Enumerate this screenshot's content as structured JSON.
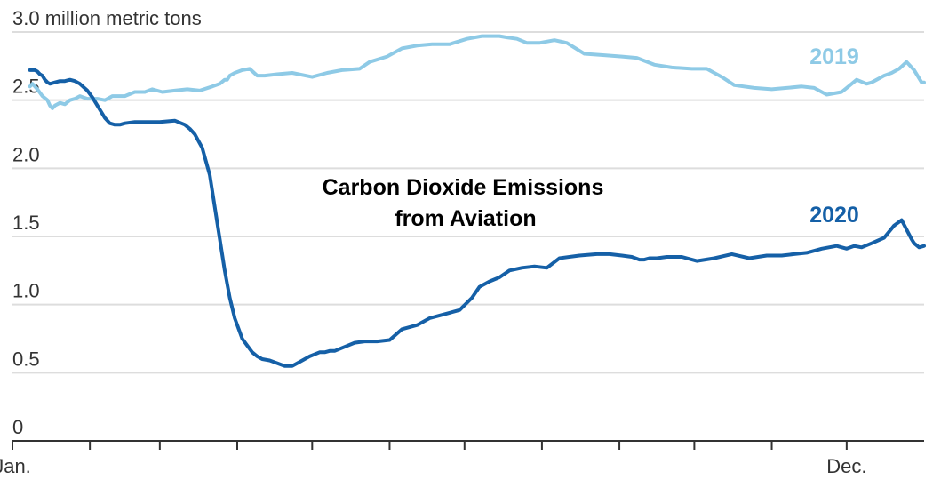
{
  "chart_data": {
    "type": "line",
    "title_lines": [
      "Carbon Dioxide Emissions",
      "from Aviation"
    ],
    "ylabel": "3.0 million metric tons",
    "ylim": [
      0,
      3.0
    ],
    "y_ticks": [
      {
        "value": 3.0,
        "label": "3.0 million metric tons"
      },
      {
        "value": 2.5,
        "label": "2.5"
      },
      {
        "value": 2.0,
        "label": "2.0"
      },
      {
        "value": 1.5,
        "label": "1.5"
      },
      {
        "value": 1.0,
        "label": "1.0"
      },
      {
        "value": 0.5,
        "label": "0.5"
      },
      {
        "value": 0,
        "label": "0"
      }
    ],
    "x_domain": [
      1,
      366
    ],
    "x_ticks": [
      {
        "day": 1,
        "label": "Jan."
      },
      {
        "day": 32,
        "label": ""
      },
      {
        "day": 60,
        "label": ""
      },
      {
        "day": 91,
        "label": ""
      },
      {
        "day": 121,
        "label": ""
      },
      {
        "day": 152,
        "label": ""
      },
      {
        "day": 182,
        "label": ""
      },
      {
        "day": 213,
        "label": ""
      },
      {
        "day": 244,
        "label": ""
      },
      {
        "day": 274,
        "label": ""
      },
      {
        "day": 305,
        "label": ""
      },
      {
        "day": 335,
        "label": "Dec."
      }
    ],
    "grid": true,
    "series": [
      {
        "name": "2019",
        "color": "#8ecae6",
        "x": [
          8,
          9,
          10,
          11,
          13,
          15,
          16,
          17,
          18,
          20,
          22,
          24,
          26,
          28,
          31,
          35,
          38,
          41,
          46,
          50,
          54,
          57,
          61,
          66,
          71,
          76,
          81,
          84,
          86,
          87,
          88,
          90,
          93,
          96,
          99,
          102,
          107,
          113,
          121,
          127,
          133,
          140,
          144,
          151,
          157,
          163,
          169,
          176,
          183,
          189,
          196,
          199,
          203,
          207,
          212,
          218,
          223,
          230,
          238,
          245,
          251,
          258,
          265,
          273,
          279,
          285,
          290,
          298,
          305,
          311,
          317,
          322,
          327,
          333,
          335,
          337,
          339,
          343,
          345,
          347,
          350,
          353,
          356,
          359,
          362,
          365,
          366
        ],
        "y": [
          2.6,
          2.62,
          2.6,
          2.58,
          2.53,
          2.5,
          2.46,
          2.44,
          2.46,
          2.48,
          2.47,
          2.5,
          2.51,
          2.53,
          2.51,
          2.51,
          2.5,
          2.53,
          2.53,
          2.56,
          2.56,
          2.58,
          2.56,
          2.57,
          2.58,
          2.57,
          2.6,
          2.62,
          2.65,
          2.65,
          2.68,
          2.7,
          2.72,
          2.73,
          2.68,
          2.68,
          2.69,
          2.7,
          2.67,
          2.7,
          2.72,
          2.73,
          2.78,
          2.82,
          2.88,
          2.9,
          2.91,
          2.91,
          2.95,
          2.97,
          2.97,
          2.96,
          2.95,
          2.92,
          2.92,
          2.94,
          2.92,
          2.84,
          2.83,
          2.82,
          2.81,
          2.76,
          2.74,
          2.73,
          2.73,
          2.67,
          2.61,
          2.59,
          2.58,
          2.59,
          2.6,
          2.59,
          2.54,
          2.56,
          2.59,
          2.62,
          2.65,
          2.62,
          2.63,
          2.65,
          2.68,
          2.7,
          2.73,
          2.78,
          2.72,
          2.63,
          2.63
        ]
      },
      {
        "name": "2020",
        "color": "#1560a7",
        "x": [
          8,
          9,
          10,
          11,
          12,
          13,
          14,
          15,
          16,
          18,
          20,
          22,
          24,
          26,
          28,
          31,
          33,
          35,
          38,
          40,
          42,
          44,
          46,
          50,
          55,
          60,
          66,
          70,
          72,
          74,
          77,
          80,
          83,
          86,
          88,
          90,
          92,
          93,
          95,
          97,
          99,
          101,
          104,
          107,
          110,
          113,
          116,
          120,
          124,
          126,
          128,
          130,
          134,
          138,
          142,
          147,
          152,
          157,
          163,
          168,
          172,
          176,
          180,
          185,
          188,
          192,
          196,
          200,
          205,
          210,
          215,
          220,
          228,
          235,
          240,
          245,
          249,
          252,
          254,
          256,
          259,
          263,
          269,
          275,
          282,
          289,
          296,
          303,
          309,
          314,
          319,
          325,
          331,
          335,
          338,
          341,
          345,
          350,
          354,
          357,
          359,
          361,
          362,
          364,
          366
        ],
        "y": [
          2.72,
          2.72,
          2.72,
          2.71,
          2.69,
          2.68,
          2.65,
          2.63,
          2.62,
          2.63,
          2.64,
          2.64,
          2.65,
          2.64,
          2.62,
          2.57,
          2.52,
          2.46,
          2.37,
          2.33,
          2.32,
          2.32,
          2.33,
          2.34,
          2.34,
          2.34,
          2.35,
          2.32,
          2.29,
          2.25,
          2.15,
          1.95,
          1.6,
          1.25,
          1.05,
          0.9,
          0.8,
          0.75,
          0.7,
          0.65,
          0.62,
          0.6,
          0.59,
          0.57,
          0.55,
          0.55,
          0.58,
          0.62,
          0.65,
          0.65,
          0.66,
          0.66,
          0.69,
          0.72,
          0.73,
          0.73,
          0.74,
          0.82,
          0.85,
          0.9,
          0.92,
          0.94,
          0.96,
          1.05,
          1.13,
          1.17,
          1.2,
          1.25,
          1.27,
          1.28,
          1.27,
          1.34,
          1.36,
          1.37,
          1.37,
          1.36,
          1.35,
          1.33,
          1.33,
          1.34,
          1.34,
          1.35,
          1.35,
          1.32,
          1.34,
          1.37,
          1.34,
          1.36,
          1.36,
          1.37,
          1.38,
          1.41,
          1.43,
          1.41,
          1.43,
          1.42,
          1.45,
          1.49,
          1.58,
          1.62,
          1.55,
          1.48,
          1.45,
          1.42,
          1.43
        ]
      }
    ]
  }
}
